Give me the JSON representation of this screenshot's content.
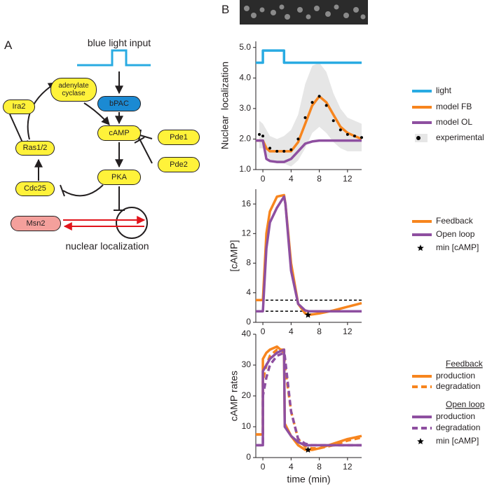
{
  "panel_labels": [
    "A",
    "B"
  ],
  "diagram": {
    "input_label": "blue light input",
    "output_label": "nuclear localization",
    "nodes": [
      {
        "label": "adenylate cyclase"
      },
      {
        "label": "bPAC"
      },
      {
        "label": "Ira2"
      },
      {
        "label": "Ras1/2"
      },
      {
        "label": "cAMP"
      },
      {
        "label": "Pde1"
      },
      {
        "label": "Pde2"
      },
      {
        "label": "Cdc25"
      },
      {
        "label": "PKA"
      },
      {
        "label": "Msn2"
      }
    ]
  },
  "chart_data": [
    {
      "type": "line",
      "ylabel": "Nuclear  localization",
      "xlim": [
        -1,
        14
      ],
      "xticks": [
        0,
        4,
        8,
        12
      ],
      "ylim": [
        1,
        5.2
      ],
      "yticks": [
        {
          "value": 1,
          "label": "1.0"
        },
        {
          "value": 2,
          "label": "2.0"
        },
        {
          "value": 3,
          "label": "3.0"
        },
        {
          "value": 4,
          "label": "4.0"
        },
        {
          "value": 5,
          "label": "5.0"
        }
      ],
      "series": [
        {
          "name": "light",
          "color": "#29abe2",
          "x": [
            -1,
            0,
            0,
            3,
            3,
            14
          ],
          "values": [
            4.5,
            4.5,
            4.9,
            4.9,
            4.5,
            4.5
          ]
        },
        {
          "name": "model FB",
          "color": "#f7851e",
          "x": [
            -1,
            0,
            0.5,
            1,
            2,
            3,
            4,
            5,
            6,
            7,
            8,
            9,
            10,
            11,
            12,
            13,
            14
          ],
          "values": [
            1.95,
            1.95,
            1.7,
            1.6,
            1.6,
            1.6,
            1.6,
            1.9,
            2.5,
            3.1,
            3.4,
            3.2,
            2.8,
            2.4,
            2.2,
            2.1,
            2.0
          ]
        },
        {
          "name": "model OL",
          "color": "#8e4fa0",
          "x": [
            -1,
            0,
            0.5,
            1,
            2,
            3,
            4,
            5,
            6,
            7,
            8,
            10,
            12,
            14
          ],
          "values": [
            1.95,
            1.95,
            1.35,
            1.28,
            1.25,
            1.25,
            1.35,
            1.6,
            1.85,
            1.92,
            1.95,
            1.95,
            1.95,
            1.95
          ]
        },
        {
          "name": "experimental",
          "color": "#000000",
          "marker": "dot",
          "band_color": "#e6e6e6",
          "x": [
            -0.5,
            0,
            1,
            2,
            3,
            4,
            5,
            6,
            7,
            8,
            9,
            10,
            11,
            12,
            13,
            14
          ],
          "values": [
            2.15,
            2.1,
            1.7,
            1.6,
            1.6,
            1.65,
            2.0,
            2.7,
            3.2,
            3.4,
            3.1,
            2.6,
            2.3,
            2.15,
            2.1,
            2.05
          ],
          "band_lower": [
            1.7,
            1.7,
            1.3,
            1.2,
            1.2,
            1.1,
            1.3,
            1.7,
            2.2,
            2.4,
            2.2,
            1.9,
            1.7,
            1.6,
            1.6,
            1.6
          ],
          "band_upper": [
            2.6,
            2.5,
            2.1,
            2.0,
            2.1,
            2.3,
            2.8,
            3.8,
            4.4,
            4.5,
            4.2,
            3.5,
            3.0,
            2.7,
            2.6,
            2.5
          ]
        }
      ]
    },
    {
      "type": "line",
      "ylabel": "[cAMP]",
      "xlim": [
        -1,
        14
      ],
      "xticks": [
        0,
        4,
        8,
        12
      ],
      "ylim": [
        0,
        18
      ],
      "yticks": [
        0,
        4,
        8,
        12,
        16
      ],
      "hlines": [
        3,
        1.5
      ],
      "x": [
        -1,
        0,
        0.5,
        1,
        2,
        3,
        3.2,
        4,
        5,
        6,
        6.5,
        8,
        10,
        12,
        14
      ],
      "series": [
        {
          "name": "Feedback",
          "color": "#f7851e",
          "values": [
            3,
            3,
            12,
            15,
            17,
            17.2,
            16,
            8,
            2.5,
            1.2,
            1,
            1.2,
            1.6,
            2.1,
            2.6
          ]
        },
        {
          "name": "Open loop",
          "color": "#8e4fa0",
          "values": [
            1.5,
            1.5,
            10,
            13.5,
            15.5,
            17,
            16,
            7,
            2.5,
            1.6,
            1.5,
            1.5,
            1.5,
            1.5,
            1.5
          ]
        },
        {
          "name": "min [cAMP]",
          "color": "#000000",
          "marker": "star",
          "x": [
            6.4
          ],
          "values": [
            1
          ]
        }
      ]
    },
    {
      "type": "line",
      "ylabel": "cAMP rates",
      "xlabel": "time (min)",
      "xlim": [
        -1,
        14
      ],
      "xticks": [
        0,
        4,
        8,
        12
      ],
      "ylim": [
        0,
        40
      ],
      "yticks": [
        0,
        10,
        20,
        30,
        40
      ],
      "legend_headers": [
        "Feedback",
        "Open loop"
      ],
      "x": [
        -1,
        0,
        0,
        0.5,
        1,
        2,
        3,
        3.1,
        4,
        5,
        6,
        7,
        8,
        10,
        12,
        14
      ],
      "series": [
        {
          "name": "production",
          "color": "#f7851e",
          "values": [
            7.5,
            7.5,
            32,
            34,
            35,
            36,
            34,
            11,
            7,
            4,
            2.5,
            2.5,
            3,
            4.5,
            6,
            7
          ]
        },
        {
          "name": "degradation",
          "color": "#f7851e",
          "dash": true,
          "values": [
            7.5,
            7.5,
            25,
            30,
            33,
            35,
            35,
            30,
            15,
            6,
            3.5,
            3,
            3,
            4,
            5.5,
            6.5
          ]
        },
        {
          "name": "production",
          "color": "#8e4fa0",
          "values": [
            4,
            4,
            28,
            30,
            32,
            34,
            35,
            10,
            7,
            5,
            4,
            4,
            4,
            4,
            4,
            4
          ]
        },
        {
          "name": "degradation",
          "color": "#8e4fa0",
          "dash": true,
          "values": [
            4,
            4,
            20,
            26,
            30,
            33,
            34,
            33,
            15,
            6,
            4.5,
            4,
            4,
            4,
            4,
            4
          ]
        },
        {
          "name": "min [cAMP]",
          "color": "#000000",
          "marker": "star",
          "x": [
            6.4
          ],
          "values": [
            2.5
          ]
        }
      ]
    }
  ]
}
